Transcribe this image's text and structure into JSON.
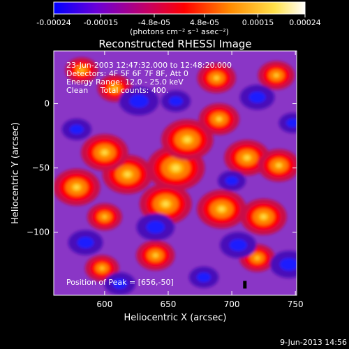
{
  "chart_data": {
    "type": "heatmap",
    "title": "Reconstructed RHESSI Image",
    "xlabel": "Heliocentric X (arcsec)",
    "ylabel": "Heliocentric Y (arcsec)",
    "xlim": [
      560,
      751
    ],
    "ylim": [
      -149,
      41
    ],
    "xticks": [
      600,
      650,
      700,
      750
    ],
    "yticks": [
      0,
      -50,
      -100
    ],
    "colorbar": {
      "range": [
        -0.00024,
        0.00024
      ],
      "tick_values": [
        -0.00024,
        -0.00015,
        -4.8e-05,
        4.8e-05,
        0.00015,
        0.00024
      ],
      "tick_labels": [
        "-0.00024",
        "-0.00015",
        "-4.8e-05",
        "4.8e-05",
        "0.00015",
        "0.00024"
      ],
      "unit_label": "(photons cm⁻² s⁻¹ asec⁻²)",
      "colors": [
        "#0000ff",
        "#6a00d8",
        "#c80060",
        "#ff0000",
        "#ff8a00",
        "#ffe14a",
        "#ffffff"
      ]
    },
    "annotations": [
      "23-Jun-2003 12:47:32.000 to 12:48:20.000",
      "Detectors: 4F 5F 6F 7F 8F, Att 0",
      "Energy Range: 12.0 - 25.0 keV",
      "Clean     Total counts: 400."
    ],
    "peak_label": "Position of Peak = [656,-50]",
    "peak": [
      656,
      -50
    ],
    "blobs": [
      {
        "x": 656,
        "y": -50,
        "v": 1.0
      },
      {
        "x": 665,
        "y": -28,
        "v": 0.85
      },
      {
        "x": 648,
        "y": -78,
        "v": 0.85
      },
      {
        "x": 618,
        "y": -55,
        "v": 0.8
      },
      {
        "x": 600,
        "y": -38,
        "v": 0.72
      },
      {
        "x": 578,
        "y": -65,
        "v": 0.72
      },
      {
        "x": 692,
        "y": -82,
        "v": 0.78
      },
      {
        "x": 712,
        "y": -42,
        "v": 0.68
      },
      {
        "x": 725,
        "y": -88,
        "v": 0.7
      },
      {
        "x": 737,
        "y": -48,
        "v": 0.58
      },
      {
        "x": 690,
        "y": -12,
        "v": 0.55
      },
      {
        "x": 688,
        "y": 20,
        "v": 0.5
      },
      {
        "x": 735,
        "y": 22,
        "v": 0.45
      },
      {
        "x": 608,
        "y": 12,
        "v": 0.4
      },
      {
        "x": 582,
        "y": 26,
        "v": 0.35
      },
      {
        "x": 640,
        "y": -118,
        "v": 0.5
      },
      {
        "x": 720,
        "y": -120,
        "v": 0.42
      },
      {
        "x": 598,
        "y": -128,
        "v": 0.38
      },
      {
        "x": 600,
        "y": -88,
        "v": 0.4
      },
      {
        "x": 627,
        "y": 2,
        "v": -0.85
      },
      {
        "x": 656,
        "y": 2,
        "v": -0.55
      },
      {
        "x": 640,
        "y": -96,
        "v": -0.8
      },
      {
        "x": 705,
        "y": -110,
        "v": -0.75
      },
      {
        "x": 720,
        "y": 5,
        "v": -0.7
      },
      {
        "x": 578,
        "y": -20,
        "v": -0.55
      },
      {
        "x": 585,
        "y": -108,
        "v": -0.7
      },
      {
        "x": 612,
        "y": -140,
        "v": -0.6
      },
      {
        "x": 745,
        "y": -125,
        "v": -0.8
      },
      {
        "x": 700,
        "y": -60,
        "v": -0.5
      },
      {
        "x": 678,
        "y": -135,
        "v": -0.55
      },
      {
        "x": 748,
        "y": -15,
        "v": -0.5
      }
    ]
  },
  "footer": {
    "date": "9-Jun-2013 14:56"
  }
}
